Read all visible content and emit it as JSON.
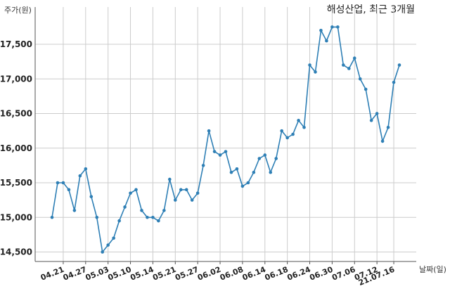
{
  "chart_data": {
    "type": "line",
    "title": "해성산업, 최근 3개월",
    "ylabel": "주가(원)",
    "xlabel": "날짜(일)",
    "ylim": [
      14500,
      17750
    ],
    "yticks": [
      14500,
      15000,
      15500,
      16000,
      16500,
      17000,
      17500
    ],
    "ytick_labels": [
      "14,500",
      "15,000",
      "15,500",
      "16,000",
      "16,500",
      "17,000",
      "17,500"
    ],
    "xticks": [
      {
        "label": "04.21",
        "index": 2
      },
      {
        "label": "04.27",
        "index": 6
      },
      {
        "label": "05.03",
        "index": 10
      },
      {
        "label": "05.10",
        "index": 14
      },
      {
        "label": "05.14",
        "index": 18
      },
      {
        "label": "05.21",
        "index": 22
      },
      {
        "label": "05.27",
        "index": 26
      },
      {
        "label": "06.02",
        "index": 30
      },
      {
        "label": "06.08",
        "index": 34
      },
      {
        "label": "06.14",
        "index": 38
      },
      {
        "label": "06.18",
        "index": 42
      },
      {
        "label": "06.24",
        "index": 46
      },
      {
        "label": "06.30",
        "index": 50
      },
      {
        "label": "07.06",
        "index": 54
      },
      {
        "label": "07.12",
        "index": 58
      },
      {
        "label": "21.07.16",
        "index": 61
      }
    ],
    "grid": true,
    "series": [
      {
        "values": [
          15000,
          15500,
          15500,
          15400,
          15100,
          15600,
          15700,
          15300,
          15000,
          14500,
          14600,
          14700,
          14950,
          15150,
          15350,
          15400,
          15100,
          15000,
          15000,
          14950,
          15100,
          15550,
          15250,
          15400,
          15400,
          15250,
          15350,
          15750,
          16250,
          15950,
          15900,
          15950,
          15650,
          15700,
          15450,
          15500,
          15650,
          15850,
          15900,
          15650,
          15850,
          16250,
          16150,
          16200,
          16400,
          16300,
          17200,
          17100,
          17700,
          17550,
          17750,
          17750,
          17200,
          17150,
          17300,
          17000,
          16850,
          16400,
          16500,
          16100,
          16300,
          16950,
          17200
        ]
      }
    ],
    "colors": {
      "line": "#2e7fb5",
      "grid": "#cccccc"
    }
  }
}
